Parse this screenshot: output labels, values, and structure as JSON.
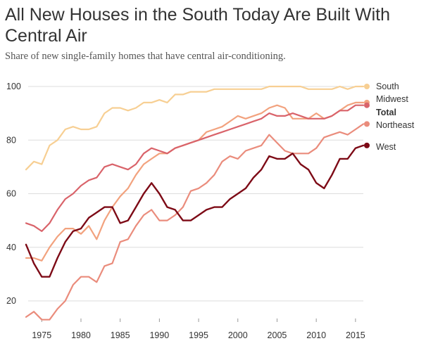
{
  "chart_data": {
    "type": "line",
    "title": "All New Houses in the South Today Are Built With Central Air",
    "subtitle": "Share of new single-family homes that have central air-conditioning.",
    "x": [
      1973,
      1974,
      1975,
      1976,
      1977,
      1978,
      1979,
      1980,
      1981,
      1982,
      1983,
      1984,
      1985,
      1986,
      1987,
      1988,
      1989,
      1990,
      1991,
      1992,
      1993,
      1994,
      1995,
      1996,
      1997,
      1998,
      1999,
      2000,
      2001,
      2002,
      2003,
      2004,
      2005,
      2006,
      2007,
      2008,
      2009,
      2010,
      2011,
      2012,
      2013,
      2014,
      2015,
      2016
    ],
    "xlim": [
      1973,
      2016
    ],
    "ylim": [
      12,
      104
    ],
    "x_ticks": [
      1975,
      1980,
      1985,
      1990,
      1995,
      2000,
      2005,
      2010,
      2015
    ],
    "x_tick_labels": [
      "1975",
      "1980",
      "1985",
      "1990",
      "1995",
      "2000",
      "2005",
      "2010",
      "2015"
    ],
    "y_ticks": [
      20,
      40,
      60,
      80,
      100
    ],
    "y_tick_labels": [
      "20",
      "40",
      "60",
      "80",
      "100"
    ],
    "grid": "horizontal",
    "legend": "right",
    "series": [
      {
        "name": "South",
        "color": "#f7cf93",
        "bold": false,
        "values": [
          69,
          72,
          71,
          78,
          80,
          84,
          85,
          84,
          84,
          85,
          90,
          92,
          92,
          91,
          92,
          94,
          94,
          95,
          94,
          97,
          97,
          98,
          98,
          98,
          99,
          99,
          99,
          99,
          99,
          99,
          99,
          100,
          100,
          100,
          100,
          100,
          99,
          99,
          99,
          99,
          100,
          99,
          100,
          100
        ]
      },
      {
        "name": "Midwest",
        "color": "#f2a27e",
        "bold": false,
        "values": [
          36,
          36,
          35,
          40,
          44,
          47,
          47,
          45,
          48,
          43,
          50,
          55,
          59,
          62,
          67,
          71,
          73,
          75,
          75,
          77,
          78,
          79,
          80,
          83,
          84,
          85,
          87,
          89,
          88,
          89,
          90,
          92,
          93,
          92,
          88,
          88,
          88,
          90,
          88,
          89,
          91,
          93,
          94,
          94
        ]
      },
      {
        "name": "Total",
        "color": "#d9636a",
        "bold": true,
        "values": [
          49,
          48,
          46,
          49,
          54,
          58,
          60,
          63,
          65,
          66,
          70,
          71,
          70,
          69,
          71,
          75,
          77,
          76,
          75,
          77,
          78,
          79,
          80,
          81,
          82,
          83,
          84,
          85,
          86,
          87,
          88,
          90,
          89,
          89,
          90,
          89,
          88,
          88,
          88,
          89,
          91,
          91,
          93,
          93
        ]
      },
      {
        "name": "Northeast",
        "color": "#ea8c7c",
        "bold": false,
        "values": [
          14,
          16,
          13,
          13,
          17,
          20,
          26,
          29,
          29,
          27,
          33,
          34,
          42,
          43,
          48,
          52,
          54,
          50,
          50,
          52,
          55,
          61,
          62,
          64,
          67,
          72,
          74,
          73,
          76,
          77,
          78,
          82,
          79,
          76,
          75,
          75,
          75,
          77,
          81,
          82,
          83,
          82,
          84,
          86
        ]
      },
      {
        "name": "West",
        "color": "#7d0a16",
        "bold": false,
        "values": [
          41,
          34,
          29,
          29,
          36,
          42,
          46,
          47,
          51,
          53,
          55,
          55,
          49,
          50,
          55,
          60,
          64,
          60,
          55,
          54,
          50,
          50,
          52,
          54,
          55,
          55,
          58,
          60,
          62,
          66,
          69,
          74,
          73,
          73,
          75,
          71,
          69,
          64,
          62,
          67,
          73,
          73,
          77,
          78
        ]
      }
    ]
  }
}
